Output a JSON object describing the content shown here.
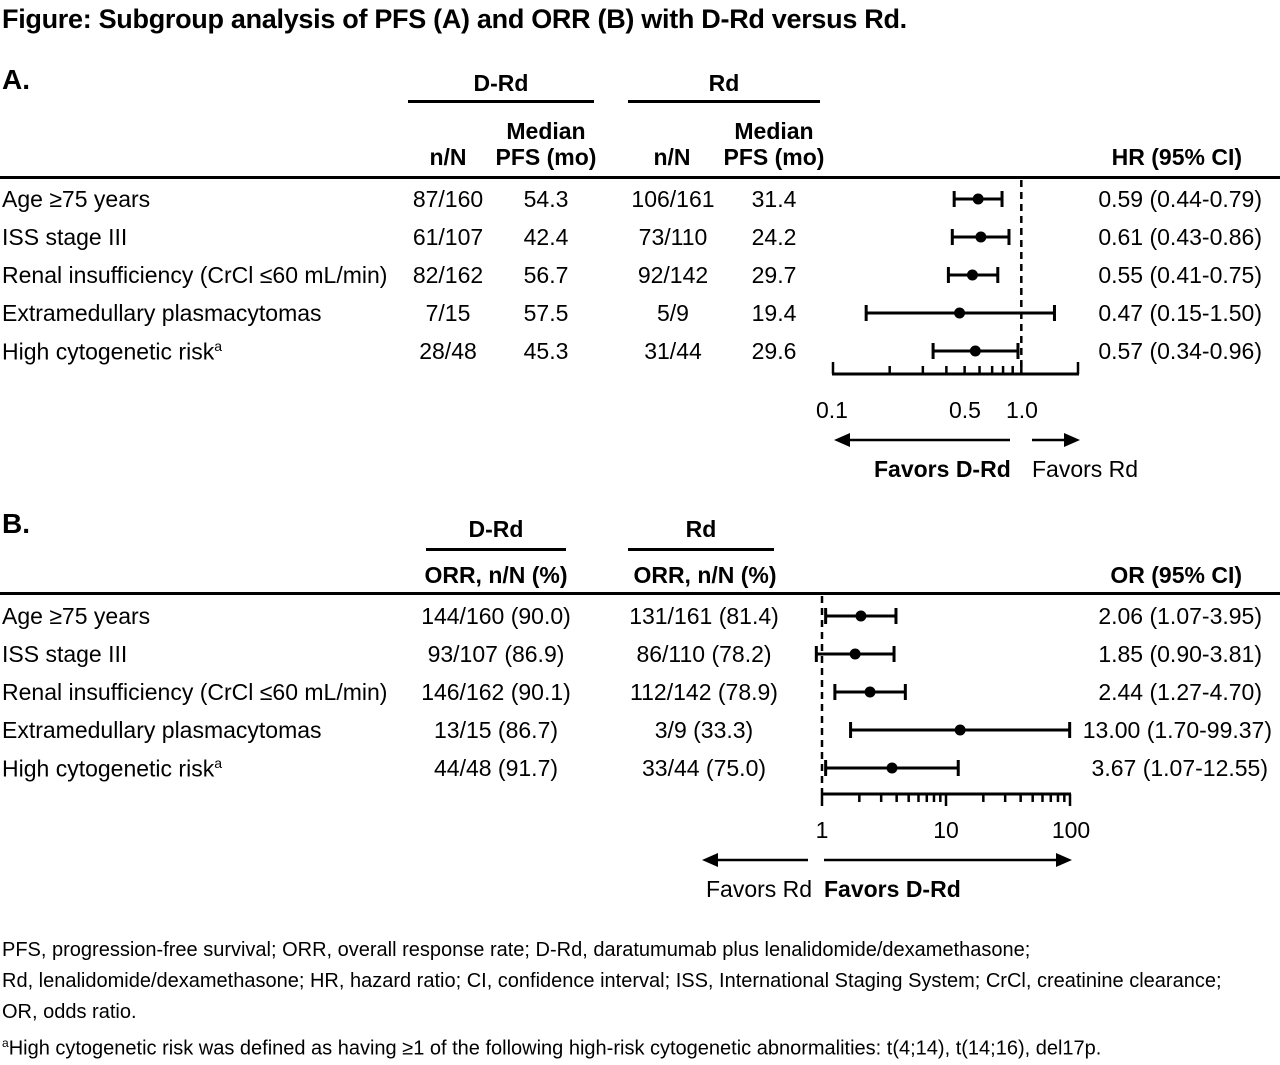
{
  "title": "Figure: Subgroup analysis of PFS (A) and ORR (B) with D-Rd versus Rd.",
  "chart_data": [
    {
      "type": "forest",
      "panel": "A.",
      "scale": "log",
      "measure_label": "HR (95% CI)",
      "reference_value": 1.0,
      "group_labels": [
        "D-Rd",
        "Rd"
      ],
      "column_headers": {
        "drd_n": "n/N",
        "drd_median": "Median PFS (mo)",
        "rd_n": "n/N",
        "rd_median": "Median PFS (mo)"
      },
      "rows": [
        {
          "label": "Age ≥75 years",
          "label_sup": "",
          "drd_n": "87/160",
          "drd_median": "54.3",
          "rd_n": "106/161",
          "rd_median": "31.4",
          "est": 0.59,
          "lo": 0.44,
          "hi": 0.79,
          "ci_text": "0.59 (0.44-0.79)"
        },
        {
          "label": "ISS stage III",
          "label_sup": "",
          "drd_n": "61/107",
          "drd_median": "42.4",
          "rd_n": "73/110",
          "rd_median": "24.2",
          "est": 0.61,
          "lo": 0.43,
          "hi": 0.86,
          "ci_text": "0.61 (0.43-0.86)"
        },
        {
          "label": "Renal insufficiency (CrCl ≤60 mL/min)",
          "label_sup": "",
          "drd_n": "82/162",
          "drd_median": "56.7",
          "rd_n": "92/142",
          "rd_median": "29.7",
          "est": 0.55,
          "lo": 0.41,
          "hi": 0.75,
          "ci_text": "0.55 (0.41-0.75)"
        },
        {
          "label": "Extramedullary plasmacytomas",
          "label_sup": "",
          "drd_n": "7/15",
          "drd_median": "57.5",
          "rd_n": "5/9",
          "rd_median": "19.4",
          "est": 0.47,
          "lo": 0.15,
          "hi": 1.5,
          "ci_text": "0.47 (0.15-1.50)"
        },
        {
          "label": "High cytogenetic risk",
          "label_sup": "a",
          "drd_n": "28/48",
          "drd_median": "45.3",
          "rd_n": "31/44",
          "rd_median": "29.6",
          "est": 0.57,
          "lo": 0.34,
          "hi": 0.96,
          "ci_text": "0.57 (0.34-0.96)"
        }
      ],
      "axis": {
        "min": 0.1,
        "max": 2.0,
        "tick_labels": [
          "0.1",
          "0.5",
          "1.0"
        ],
        "tick_values": [
          0.1,
          0.5,
          1.0
        ]
      },
      "favors_left": "Favors D-Rd",
      "favors_right": "Favors Rd"
    },
    {
      "type": "forest",
      "panel": "B.",
      "scale": "log",
      "measure_label": "OR (95% CI)",
      "reference_value": 1.0,
      "group_labels": [
        "D-Rd",
        "Rd"
      ],
      "column_headers": {
        "drd": "ORR, n/N (%)",
        "rd": "ORR, n/N (%)"
      },
      "rows": [
        {
          "label": "Age ≥75 years",
          "label_sup": "",
          "drd": "144/160 (90.0)",
          "rd": "131/161 (81.4)",
          "est": 2.06,
          "lo": 1.07,
          "hi": 3.95,
          "ci_text": "2.06 (1.07-3.95)"
        },
        {
          "label": "ISS stage III",
          "label_sup": "",
          "drd": "93/107 (86.9)",
          "rd": "86/110 (78.2)",
          "est": 1.85,
          "lo": 0.9,
          "hi": 3.81,
          "ci_text": "1.85 (0.90-3.81)"
        },
        {
          "label": "Renal insufficiency (CrCl ≤60 mL/min)",
          "label_sup": "",
          "drd": "146/162 (90.1)",
          "rd": "112/142 (78.9)",
          "est": 2.44,
          "lo": 1.27,
          "hi": 4.7,
          "ci_text": "2.44 (1.27-4.70)"
        },
        {
          "label": "Extramedullary plasmacytomas",
          "label_sup": "",
          "drd": "13/15 (86.7)",
          "rd": "3/9 (33.3)",
          "est": 13.0,
          "lo": 1.7,
          "hi": 99.37,
          "ci_text": "13.00 (1.70-99.37)"
        },
        {
          "label": "High cytogenetic risk",
          "label_sup": "a",
          "drd": "44/48 (91.7)",
          "rd": "33/44 (75.0)",
          "est": 3.67,
          "lo": 1.07,
          "hi": 12.55,
          "ci_text": "3.67 (1.07-12.55)"
        }
      ],
      "axis": {
        "min": 1,
        "max": 100,
        "tick_labels": [
          "1",
          "10",
          "100"
        ],
        "tick_values": [
          1,
          10,
          100
        ]
      },
      "favors_left": "Favors Rd",
      "favors_right": "Favors D-Rd"
    }
  ],
  "footnotes": [
    "PFS, progression-free survival; ORR, overall response rate; D-Rd, daratumumab plus lenalidomide/dexamethasone;",
    "Rd, lenalidomide/dexamethasone; HR, hazard ratio; CI, confidence interval; ISS, International Staging System; CrCl, creatinine clearance;",
    "OR, odds ratio."
  ],
  "footnote_a": {
    "marker": "a",
    "text": "High cytogenetic risk was defined as having ≥1 of the following high-risk cytogenetic abnormalities: t(4;14), t(14;16), del17p."
  }
}
